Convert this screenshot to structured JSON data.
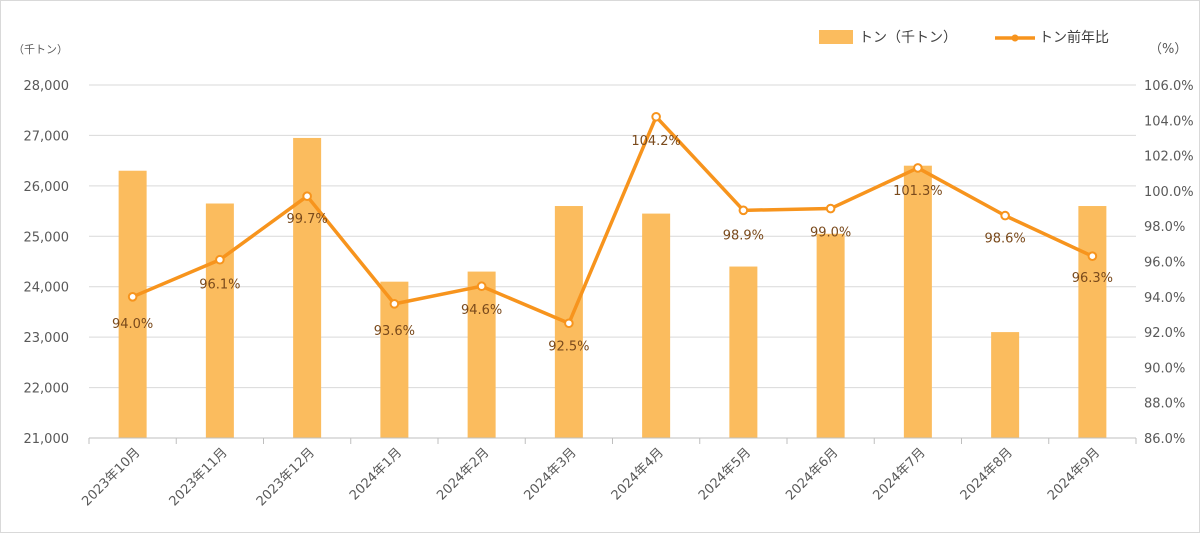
{
  "chart_data": {
    "type": "bar+line",
    "categories": [
      "2023年10月",
      "2023年11月",
      "2023年12月",
      "2024年1月",
      "2024年2月",
      "2024年3月",
      "2024年4月",
      "2024年5月",
      "2024年6月",
      "2024年7月",
      "2024年8月",
      "2024年9月"
    ],
    "series": [
      {
        "name": "トン（千トン）",
        "type": "bar",
        "axis": "left",
        "color": "#fbbc5e",
        "values": [
          26300,
          25650,
          26950,
          24100,
          24300,
          25600,
          25450,
          24400,
          25050,
          26400,
          23100,
          25600
        ]
      },
      {
        "name": "トン前年比",
        "type": "line",
        "axis": "right",
        "color": "#f7941d",
        "values": [
          94.0,
          96.1,
          99.7,
          93.6,
          94.6,
          92.5,
          104.2,
          98.9,
          99.0,
          101.3,
          98.6,
          96.3
        ],
        "labels": [
          "94.0%",
          "96.1%",
          "99.7%",
          "93.6%",
          "94.6%",
          "92.5%",
          "104.2%",
          "98.9%",
          "99.0%",
          "101.3%",
          "98.6%",
          "96.3%"
        ]
      }
    ],
    "y_left": {
      "unit": "（千トン）",
      "ylim": [
        21000,
        28000
      ],
      "ticks": [
        21000,
        22000,
        23000,
        24000,
        25000,
        26000,
        27000,
        28000
      ],
      "tick_labels": [
        "21,000",
        "22,000",
        "23,000",
        "24,000",
        "25,000",
        "26,000",
        "27,000",
        "28,000"
      ]
    },
    "y_right": {
      "unit": "（%）",
      "ylim": [
        86.0,
        106.0
      ],
      "ticks": [
        86,
        88,
        90,
        92,
        94,
        96,
        98,
        100,
        102,
        104,
        106
      ],
      "tick_labels": [
        "86.0%",
        "88.0%",
        "90.0%",
        "92.0%",
        "94.0%",
        "96.0%",
        "98.0%",
        "100.0%",
        "102.0%",
        "104.0%",
        "106.0%"
      ]
    },
    "grid": true,
    "legend_position": "top-right"
  }
}
